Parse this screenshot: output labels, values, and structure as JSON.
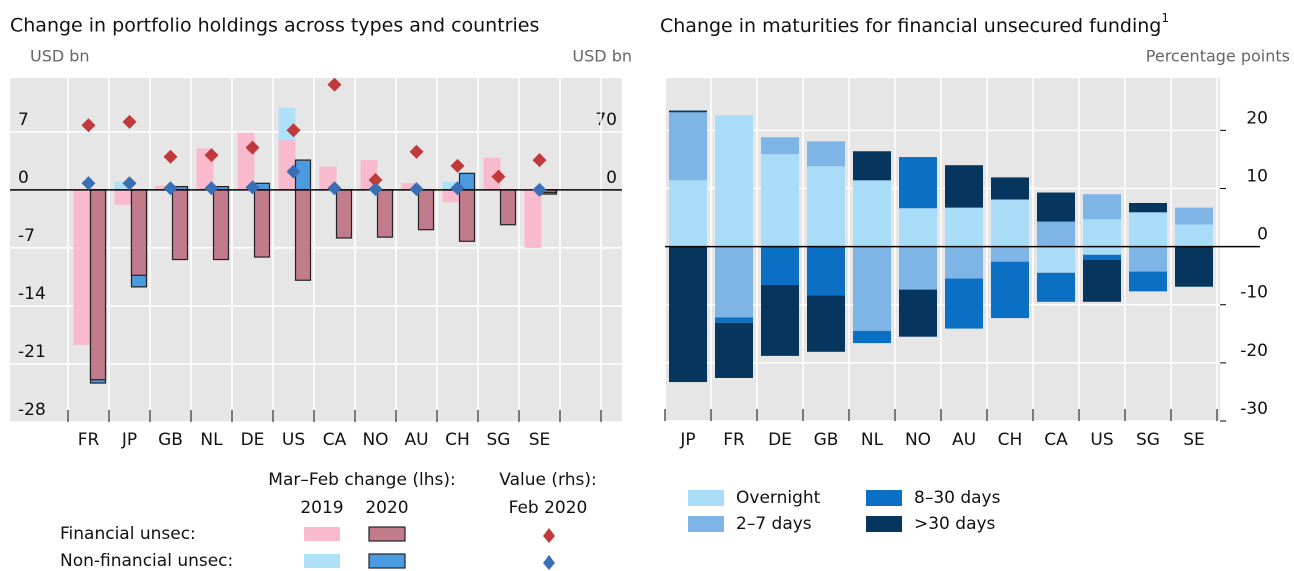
{
  "chart_data": [
    {
      "type": "overlay_bar",
      "title": "Change in portfolio holdings across types and countries",
      "y_unit": "USD bn",
      "y2_unit": "USD bn",
      "categories": [
        "FR",
        "JP",
        "GB",
        "NL",
        "DE",
        "US",
        "CA",
        "NO",
        "AU",
        "CH",
        "SG",
        "SE"
      ],
      "ylim": [
        -28,
        13.5
      ],
      "yticks": [
        -28,
        -21,
        -14,
        -7,
        0,
        7
      ],
      "y2lim": [
        -280,
        135
      ],
      "y2ticks": [
        0,
        70
      ],
      "grid": true,
      "change_label": "Mar–Feb change (lhs):",
      "years": [
        "2019",
        "2020"
      ],
      "value_label": "Value (rhs):",
      "value_date": "Feb 2020",
      "groups": [
        {
          "name": "Financial unsec:",
          "bars": [
            {
              "color": "#f9bacd",
              "values": [
                -18.7,
                -1.8,
                0.5,
                5,
                6.9,
                6,
                2.8,
                3.6,
                0.8,
                -1.5,
                3.9,
                -7
              ]
            },
            {
              "color": "#c27b8a",
              "values": [
                -22.9,
                -10.3,
                -8.4,
                -8.4,
                -8.1,
                -10.9,
                -5.8,
                -5.7,
                -4.8,
                -6.2,
                -4.2,
                -0.3
              ]
            }
          ],
          "diamonds": {
            "color": "#c0393b",
            "axis": "y2",
            "values": [
              78,
              82,
              40,
              42,
              51,
              72,
              127,
              12,
              46,
              29,
              16,
              36
            ]
          }
        },
        {
          "name": "Non-financial unsec:",
          "bars": [
            {
              "color": "#aee0f8",
              "values": [
                null,
                1,
                null,
                null,
                null,
                9.9,
                null,
                null,
                null,
                1,
                null,
                null
              ]
            },
            {
              "color": "#4a9be0",
              "values": [
                -23.3,
                -11.7,
                0.4,
                0.4,
                0.8,
                3.6,
                null,
                null,
                null,
                2,
                null,
                -0.5
              ]
            }
          ],
          "diamonds": {
            "color": "#3a6eb5",
            "axis": "y2",
            "values": [
              8,
              8,
              2,
              2,
              3,
              22,
              2,
              1,
              1,
              2,
              null,
              0
            ]
          }
        }
      ]
    },
    {
      "type": "stacked_bar",
      "title": "Change in maturities for financial unsecured funding",
      "title_note": "1",
      "y_unit": "Percentage points",
      "categories": [
        "JP",
        "FR",
        "DE",
        "GB",
        "NL",
        "NO",
        "AU",
        "CH",
        "CA",
        "US",
        "SG",
        "SE"
      ],
      "ylim": [
        -30,
        29
      ],
      "yticks": [
        -30,
        -20,
        -10,
        0,
        10,
        20
      ],
      "grid": true,
      "series": [
        {
          "name": "Overnight",
          "color": "#a9dcf7",
          "values": [
            [
              11.4,
              null
            ],
            [
              22.6,
              null
            ],
            [
              15.9,
              null
            ],
            [
              13.8,
              null
            ],
            [
              11.4,
              null
            ],
            [
              6.6,
              null
            ],
            [
              6.7,
              null
            ],
            [
              8.1,
              null
            ],
            [
              null,
              -4.5
            ],
            [
              4.7,
              -1.4
            ],
            [
              5.9,
              null
            ],
            [
              3.8,
              null
            ]
          ]
        },
        {
          "name": "2–7 days",
          "color": "#7fb4e6",
          "values": [
            [
              11.7,
              null
            ],
            [
              null,
              -12.2
            ],
            [
              2.9,
              null
            ],
            [
              4.3,
              null
            ],
            [
              null,
              -14.5
            ],
            [
              null,
              -7.4
            ],
            [
              null,
              -5.5
            ],
            [
              null,
              -2.6
            ],
            [
              4.3,
              null
            ],
            [
              4.3,
              null
            ],
            [
              null,
              -4.3
            ],
            [
              2.9,
              null
            ]
          ]
        },
        {
          "name": "8–30 days",
          "color": "#0b6fc4",
          "values": [
            [
              null,
              null
            ],
            [
              null,
              -0.9
            ],
            [
              null,
              -6.6
            ],
            [
              null,
              -8.4
            ],
            [
              null,
              -2.1
            ],
            [
              8.8,
              null
            ],
            [
              null,
              -8.6
            ],
            [
              null,
              -9.7
            ],
            [
              null,
              -5
            ],
            [
              null,
              -0.9
            ],
            [
              null,
              -3.4
            ],
            [
              null,
              null
            ]
          ]
        },
        {
          "name": ">30 days",
          "color": "#06365e",
          "values": [
            [
              0.3,
              -23.3
            ],
            [
              null,
              -9.5
            ],
            [
              null,
              -12.2
            ],
            [
              null,
              -9.7
            ],
            [
              5,
              null
            ],
            [
              null,
              -8.1
            ],
            [
              7.3,
              null
            ],
            [
              3.8,
              null
            ],
            [
              5,
              null
            ],
            [
              null,
              -7.2
            ],
            [
              1.6,
              null
            ],
            [
              null,
              -6.9
            ]
          ]
        }
      ]
    }
  ]
}
